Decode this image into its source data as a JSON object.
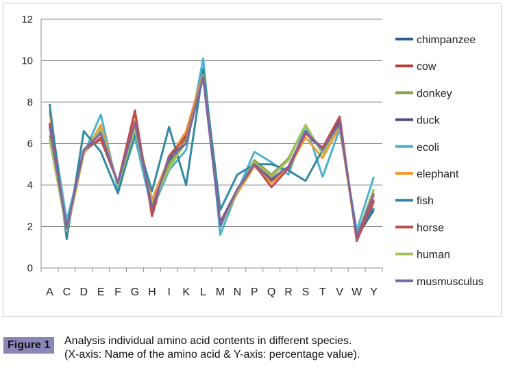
{
  "chart_data": {
    "type": "line",
    "title": "",
    "xlabel": "",
    "ylabel": "",
    "ylim": [
      0,
      12
    ],
    "yticks": [
      0,
      2,
      4,
      6,
      8,
      10,
      12
    ],
    "grid": true,
    "legend_position": "right",
    "categories": [
      "A",
      "C",
      "D",
      "E",
      "F",
      "G",
      "H",
      "I",
      "K",
      "L",
      "M",
      "N",
      "P",
      "Q",
      "R",
      "S",
      "T",
      "V",
      "W",
      "Y"
    ],
    "series": [
      {
        "name": "chimpanzee",
        "color": "#2a5c92",
        "values": [
          6.9,
          2.0,
          5.6,
          6.6,
          4.0,
          7.0,
          2.9,
          5.2,
          6.1,
          9.2,
          2.0,
          3.8,
          5.0,
          4.2,
          4.8,
          6.5,
          5.7,
          7.0,
          1.5,
          2.8
        ]
      },
      {
        "name": "cow",
        "color": "#b8413c",
        "values": [
          6.9,
          1.9,
          5.7,
          6.2,
          4.1,
          7.6,
          2.5,
          5.4,
          6.4,
          9.3,
          2.1,
          3.7,
          5.0,
          3.9,
          4.8,
          6.5,
          5.8,
          7.3,
          1.3,
          3.2
        ]
      },
      {
        "name": "donkey",
        "color": "#8aa54a",
        "values": [
          6.4,
          1.8,
          5.6,
          6.8,
          4.0,
          7.0,
          3.0,
          5.0,
          6.2,
          9.3,
          2.1,
          3.7,
          5.2,
          4.5,
          5.3,
          6.9,
          5.5,
          7.0,
          1.5,
          3.8
        ]
      },
      {
        "name": "duck",
        "color": "#4f4a78",
        "values": [
          7.0,
          1.9,
          5.7,
          6.5,
          4.1,
          7.0,
          2.9,
          5.4,
          6.0,
          9.2,
          2.2,
          3.8,
          5.0,
          4.2,
          4.8,
          6.5,
          5.8,
          7.1,
          1.5,
          3.5
        ]
      },
      {
        "name": "ecoli",
        "color": "#4bb2cc",
        "values": [
          7.5,
          2.3,
          5.5,
          7.4,
          3.8,
          6.3,
          2.8,
          4.7,
          5.7,
          10.1,
          1.6,
          3.7,
          5.6,
          5.1,
          4.5,
          6.9,
          4.4,
          6.7,
          1.8,
          4.4
        ]
      },
      {
        "name": "elephant",
        "color": "#f39a3a",
        "values": [
          7.6,
          1.7,
          5.5,
          6.9,
          4.0,
          7.1,
          3.3,
          5.3,
          6.6,
          9.4,
          2.1,
          3.6,
          4.9,
          4.1,
          4.8,
          6.3,
          5.3,
          6.8,
          1.4,
          3.5
        ]
      },
      {
        "name": "fish",
        "color": "#3288a2",
        "values": [
          7.9,
          1.4,
          6.6,
          5.6,
          3.6,
          6.5,
          3.7,
          6.8,
          4.0,
          9.6,
          2.8,
          4.5,
          5.0,
          5.0,
          4.7,
          4.2,
          5.7,
          6.9,
          1.6,
          2.9
        ]
      },
      {
        "name": "horse",
        "color": "#c0504d",
        "values": [
          7.0,
          1.9,
          5.6,
          6.3,
          4.1,
          7.5,
          2.6,
          5.4,
          6.3,
          9.3,
          2.1,
          3.7,
          5.0,
          3.9,
          4.8,
          6.5,
          5.8,
          7.3,
          1.3,
          3.3
        ]
      },
      {
        "name": "human",
        "color": "#a6c25c",
        "values": [
          6.2,
          1.8,
          5.6,
          6.7,
          4.0,
          6.7,
          3.1,
          4.8,
          6.1,
          9.3,
          2.1,
          3.7,
          5.1,
          4.4,
          5.2,
          6.9,
          5.5,
          7.0,
          1.5,
          3.8
        ]
      },
      {
        "name": "musmusculus",
        "color": "#8064a2",
        "values": [
          6.8,
          1.9,
          5.7,
          6.5,
          4.1,
          7.0,
          2.9,
          5.3,
          6.0,
          9.2,
          2.1,
          3.8,
          5.0,
          4.3,
          4.9,
          6.6,
          5.7,
          7.0,
          1.5,
          3.6
        ]
      }
    ]
  },
  "caption": {
    "label": "Figure 1",
    "line1": "Analysis individual amino acid contents in different species.",
    "line2": "(X-axis: Name of the amino acid & Y-axis: percentage value)."
  }
}
